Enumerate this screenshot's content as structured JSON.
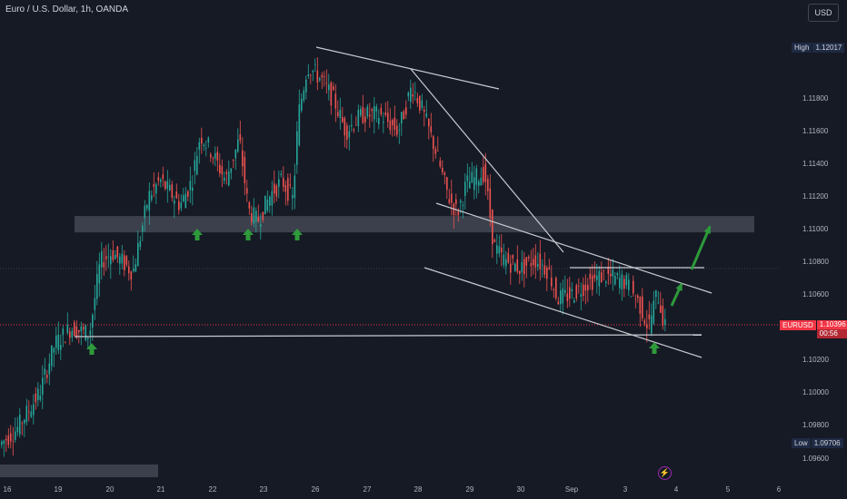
{
  "chart_title": "Euro / U.S. Dollar, 1h, OANDA",
  "currency_button": "USD",
  "high_label": "High",
  "high_value": "1.12017",
  "low_label": "Low",
  "low_value": "1.09706",
  "symbol": "EURUSD",
  "last_price": "1.10396",
  "countdown": "00:56",
  "y_ticks": [
    "1.11800",
    "1.11600",
    "1.11400",
    "1.11200",
    "1.11000",
    "1.10800",
    "1.10600",
    "1.10200",
    "1.10000",
    "1.09800",
    "1.09600"
  ],
  "x_ticks": [
    "16",
    "19",
    "20",
    "21",
    "22",
    "23",
    "26",
    "27",
    "28",
    "29",
    "30",
    "Sep",
    "3",
    "4",
    "5",
    "6"
  ],
  "colors": {
    "up": "#26a69a",
    "down": "#ef5350",
    "zone": "#4a4e5a",
    "line": "#c8cad0",
    "arrow": "#2e9a3a",
    "background": "#161a25"
  },
  "chart_data": {
    "type": "candlestick",
    "title": "Euro / U.S. Dollar, 1h, OANDA",
    "ylim": [
      1.0952,
      1.1218
    ],
    "series_close_path": [
      [
        "16",
        1.0971
      ],
      [
        "19",
        1.103
      ],
      [
        "19",
        1.1038
      ],
      [
        "20",
        1.108
      ],
      [
        "20",
        1.1074
      ],
      [
        "21",
        1.1128
      ],
      [
        "21",
        1.112
      ],
      [
        "22",
        1.116
      ],
      [
        "22",
        1.1145
      ],
      [
        "23",
        1.111
      ],
      [
        "23",
        1.1122
      ],
      [
        "26",
        1.12
      ],
      [
        "26",
        1.1185
      ],
      [
        "27",
        1.1168
      ],
      [
        "27",
        1.117
      ],
      [
        "28",
        1.119
      ],
      [
        "28",
        1.115
      ],
      [
        "29",
        1.1115
      ],
      [
        "29",
        1.1138
      ],
      [
        "30",
        1.1085
      ],
      [
        "30",
        1.1078
      ],
      [
        "Sep",
        1.1063
      ],
      [
        "Sep",
        1.1072
      ],
      [
        "3",
        1.1065
      ],
      [
        "3",
        1.104
      ],
      [
        "4",
        1.1052
      ]
    ],
    "high": 1.12017,
    "low": 1.09706,
    "last": 1.10396,
    "annotations": {
      "support_zone": [
        1.1098,
        1.1106
      ],
      "lower_zone": [
        1.0958,
        1.0963
      ],
      "support_line": 1.1034,
      "target_line": 1.1073,
      "up_arrows_under_zone": 3,
      "up_arrows_under_support": 2,
      "breakout_arrows": 2
    }
  }
}
